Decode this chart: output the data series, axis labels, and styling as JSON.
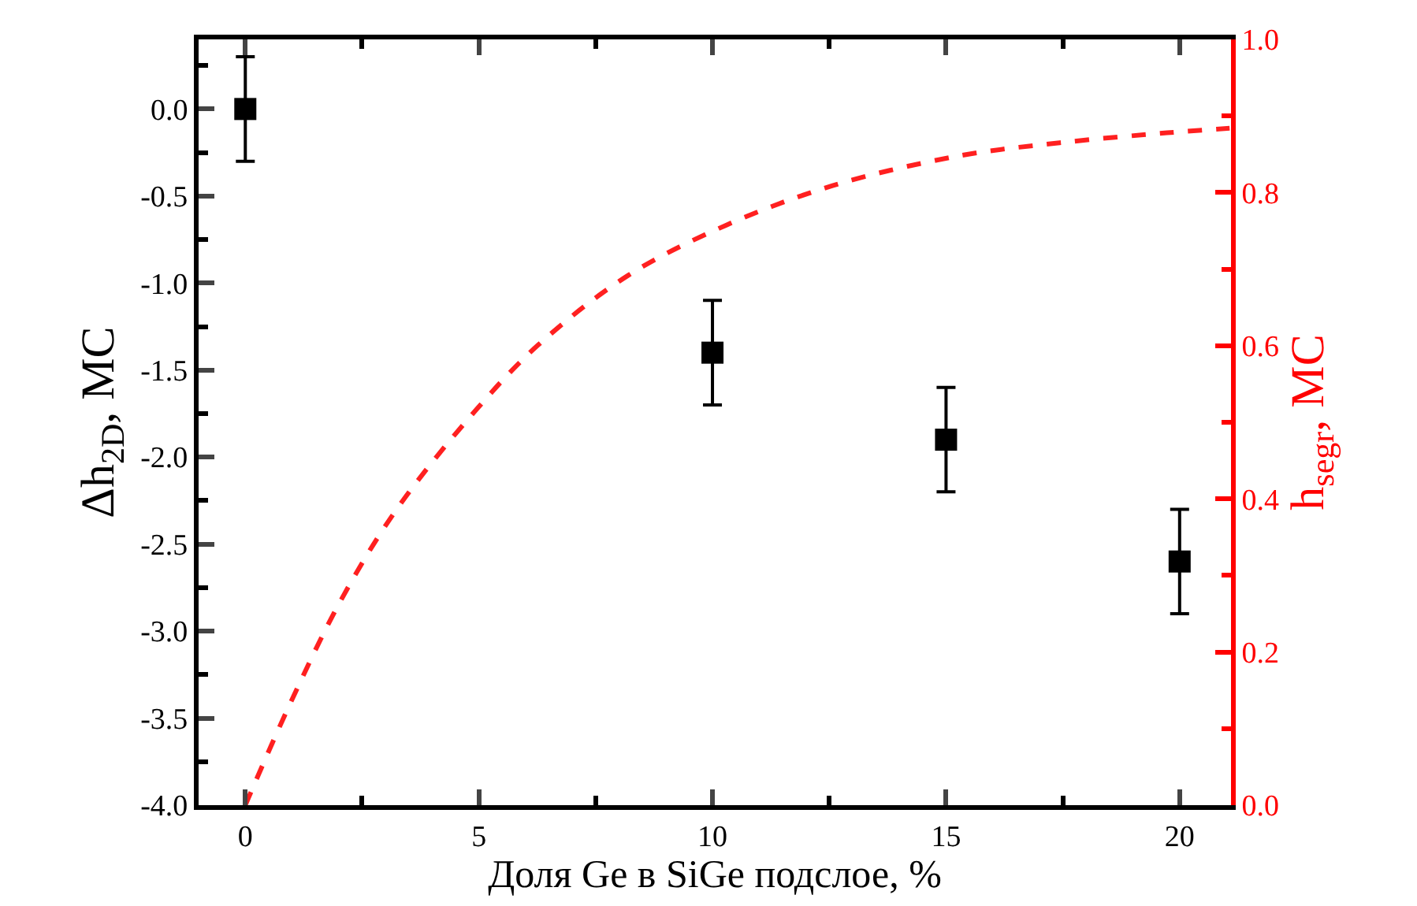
{
  "chart_data": {
    "type": "scatter",
    "xlabel": "Доля Ge в SiGe подслое, %",
    "ylabel": "Δh$_{2D}$, МС",
    "y2label": "h$_{segr}$, МС",
    "xlim": [
      -1,
      21.1
    ],
    "xticks": [
      0,
      5,
      10,
      15,
      20,
      {
        "value": 2.5,
        "label": null
      },
      {
        "value": 7.5,
        "label": null
      },
      {
        "value": 12.5,
        "label": null
      },
      {
        "value": 17.5,
        "label": null
      }
    ],
    "ylim": [
      -4,
      0.4
    ],
    "yticks": [
      {
        "value": -4.0,
        "label": "-4.0"
      },
      {
        "value": -3.5,
        "label": "-3.5"
      },
      {
        "value": -3.0,
        "label": "-3.0"
      },
      {
        "value": -2.5,
        "label": "-2.5"
      },
      {
        "value": -2.0,
        "label": "-2.0"
      },
      {
        "value": -1.5,
        "label": "-1.5"
      },
      {
        "value": -1.0,
        "label": "-1.0"
      },
      {
        "value": -0.5,
        "label": "-0.5"
      },
      {
        "value": 0.0,
        "label": "0.0"
      },
      {
        "value": -3.75,
        "label": null
      },
      {
        "value": -3.25,
        "label": null
      },
      {
        "value": -2.75,
        "label": null
      },
      {
        "value": -2.25,
        "label": null
      },
      {
        "value": -1.75,
        "label": null
      },
      {
        "value": -1.25,
        "label": null
      },
      {
        "value": -0.75,
        "label": null
      },
      {
        "value": -0.25,
        "label": null
      },
      {
        "value": 0.25,
        "label": null
      }
    ],
    "y2lim": [
      0,
      1
    ],
    "y2ticks": [
      {
        "value": 0,
        "label": "0.0"
      },
      0.2,
      0.4,
      0.6,
      0.8,
      {
        "value": 1,
        "label": "1.0"
      },
      {
        "value": 0.1,
        "label": null
      },
      {
        "value": 0.3,
        "label": null
      },
      {
        "value": 0.5,
        "label": null
      },
      {
        "value": 0.7,
        "label": null
      },
      {
        "value": 0.9,
        "label": null
      }
    ],
    "series": [
      {
        "color": "#000000",
        "marker": "square",
        "x": [
          0,
          10,
          15,
          20
        ],
        "values": [
          0.0,
          -1.4,
          -1.9,
          -2.6
        ],
        "errors": [
          0.3,
          0.3,
          0.3,
          0.3
        ]
      },
      {
        "type": "line",
        "axis": "y2",
        "color": "#ff2020",
        "line_style": "dashed",
        "marker": "none",
        "x": [
          0,
          0.97,
          2.05,
          3.27,
          4.98,
          6.27,
          8.2,
          10.28,
          12.57,
          15.29,
          17.43,
          19.73,
          21.07
        ],
        "values": [
          0,
          0.134,
          0.268,
          0.389,
          0.519,
          0.601,
          0.692,
          0.757,
          0.809,
          0.848,
          0.865,
          0.878,
          0.884
        ]
      }
    ]
  }
}
